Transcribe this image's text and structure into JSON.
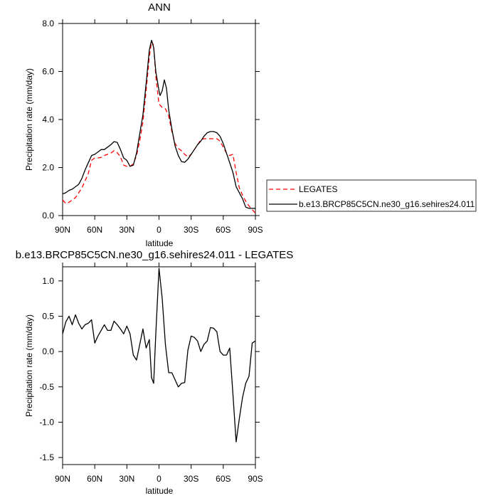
{
  "chart_data": [
    {
      "type": "line",
      "title": "ANN",
      "xlabel": "latitude",
      "ylabel": "Precipitation rate (mm/day)",
      "xlim": [
        90,
        -90
      ],
      "ylim": [
        0,
        8
      ],
      "xticks": [
        90,
        60,
        30,
        0,
        -30,
        -60,
        -90
      ],
      "xtick_labels": [
        "90N",
        "60N",
        "30N",
        "0",
        "30S",
        "60S",
        "90S"
      ],
      "yticks": [
        0,
        2,
        4,
        6,
        8
      ],
      "ytick_labels": [
        "0.0",
        "2.0",
        "4.0",
        "6.0",
        "8.0"
      ],
      "grid": false,
      "legend_position": "right",
      "series": [
        {
          "name": "LEGATES",
          "color": "#ff0000",
          "dash": "dashed",
          "points": [
            [
              90,
              0.65
            ],
            [
              87,
              0.5
            ],
            [
              84,
              0.55
            ],
            [
              81,
              0.65
            ],
            [
              78,
              0.75
            ],
            [
              75,
              0.95
            ],
            [
              72,
              1.15
            ],
            [
              69,
              1.45
            ],
            [
              66,
              1.75
            ],
            [
              63,
              2.3
            ],
            [
              60,
              2.4
            ],
            [
              57,
              2.4
            ],
            [
              54,
              2.42
            ],
            [
              51,
              2.5
            ],
            [
              48,
              2.55
            ],
            [
              45,
              2.6
            ],
            [
              42,
              2.7
            ],
            [
              39,
              2.62
            ],
            [
              36,
              2.45
            ],
            [
              33,
              2.1
            ],
            [
              30,
              2.05
            ],
            [
              27,
              2.05
            ],
            [
              24,
              2.15
            ],
            [
              21,
              2.5
            ],
            [
              18,
              3.1
            ],
            [
              15,
              3.9
            ],
            [
              12,
              5.2
            ],
            [
              9,
              6.6
            ],
            [
              7,
              7.25
            ],
            [
              5,
              7.1
            ],
            [
              3,
              5.8
            ],
            [
              0,
              4.65
            ],
            [
              -3,
              4.5
            ],
            [
              -6,
              4.45
            ],
            [
              -9,
              4.15
            ],
            [
              -12,
              3.5
            ],
            [
              -15,
              3.0
            ],
            [
              -18,
              2.8
            ],
            [
              -21,
              2.7
            ],
            [
              -24,
              2.55
            ],
            [
              -27,
              2.45
            ],
            [
              -30,
              2.55
            ],
            [
              -33,
              2.75
            ],
            [
              -36,
              2.95
            ],
            [
              -39,
              3.15
            ],
            [
              -42,
              3.2
            ],
            [
              -45,
              3.2
            ],
            [
              -48,
              3.2
            ],
            [
              -51,
              3.2
            ],
            [
              -54,
              3.2
            ],
            [
              -57,
              3.1
            ],
            [
              -60,
              2.85
            ],
            [
              -63,
              2.6
            ],
            [
              -66,
              2.5
            ],
            [
              -69,
              2.55
            ],
            [
              -72,
              1.8
            ],
            [
              -75,
              1.15
            ],
            [
              -78,
              0.85
            ],
            [
              -81,
              0.6
            ],
            [
              -84,
              0.4
            ],
            [
              -87,
              0.25
            ],
            [
              -90,
              0.1
            ]
          ]
        },
        {
          "name": "b.e13.BRCP85C5CN.ne30_g16.sehires24.011",
          "color": "#000000",
          "dash": "solid",
          "points": [
            [
              90,
              0.9
            ],
            [
              87,
              0.95
            ],
            [
              84,
              1.05
            ],
            [
              81,
              1.1
            ],
            [
              78,
              1.2
            ],
            [
              75,
              1.3
            ],
            [
              72,
              1.55
            ],
            [
              69,
              1.9
            ],
            [
              66,
              2.2
            ],
            [
              63,
              2.5
            ],
            [
              60,
              2.55
            ],
            [
              57,
              2.65
            ],
            [
              54,
              2.75
            ],
            [
              51,
              2.75
            ],
            [
              48,
              2.85
            ],
            [
              45,
              2.95
            ],
            [
              42,
              3.08
            ],
            [
              39,
              3.05
            ],
            [
              36,
              2.75
            ],
            [
              33,
              2.4
            ],
            [
              30,
              2.3
            ],
            [
              27,
              2.05
            ],
            [
              24,
              2.1
            ],
            [
              21,
              2.6
            ],
            [
              18,
              3.4
            ],
            [
              15,
              4.2
            ],
            [
              12,
              5.5
            ],
            [
              9,
              6.9
            ],
            [
              7,
              7.3
            ],
            [
              5,
              7.0
            ],
            [
              3,
              6.0
            ],
            [
              0,
              5.2
            ],
            [
              -1,
              5.0
            ],
            [
              -3,
              5.2
            ],
            [
              -5,
              5.65
            ],
            [
              -7,
              5.3
            ],
            [
              -9,
              4.4
            ],
            [
              -12,
              3.6
            ],
            [
              -15,
              2.9
            ],
            [
              -18,
              2.5
            ],
            [
              -21,
              2.25
            ],
            [
              -24,
              2.22
            ],
            [
              -27,
              2.35
            ],
            [
              -30,
              2.55
            ],
            [
              -33,
              2.75
            ],
            [
              -36,
              2.95
            ],
            [
              -39,
              3.1
            ],
            [
              -42,
              3.3
            ],
            [
              -45,
              3.45
            ],
            [
              -48,
              3.5
            ],
            [
              -51,
              3.5
            ],
            [
              -54,
              3.45
            ],
            [
              -57,
              3.3
            ],
            [
              -60,
              3.0
            ],
            [
              -63,
              2.6
            ],
            [
              -66,
              2.2
            ],
            [
              -69,
              1.8
            ],
            [
              -72,
              1.2
            ],
            [
              -75,
              0.95
            ],
            [
              -78,
              0.7
            ],
            [
              -81,
              0.35
            ],
            [
              -84,
              0.3
            ],
            [
              -87,
              0.3
            ],
            [
              -90,
              0.3
            ]
          ]
        }
      ]
    },
    {
      "type": "line",
      "title": "b.e13.BRCP85C5CN.ne30_g16.sehires24.011 - LEGATES",
      "xlabel": "latitude",
      "ylabel": "Precipitation rate (mm/day)",
      "xlim": [
        90,
        -90
      ],
      "ylim": [
        -1.6,
        1.2
      ],
      "xticks": [
        90,
        60,
        30,
        0,
        -30,
        -60,
        -90
      ],
      "xtick_labels": [
        "90N",
        "60N",
        "30N",
        "0",
        "30S",
        "60S",
        "90S"
      ],
      "yticks": [
        -1.5,
        -1.0,
        -0.5,
        0.0,
        0.5,
        1.0
      ],
      "ytick_labels": [
        "-1.5",
        "-1.0",
        "-0.5",
        "0.0",
        "0.5",
        "1.0"
      ],
      "grid": false,
      "series": [
        {
          "color": "#000000",
          "dash": "solid",
          "points": [
            [
              90,
              0.25
            ],
            [
              87,
              0.42
            ],
            [
              84,
              0.5
            ],
            [
              81,
              0.38
            ],
            [
              78,
              0.52
            ],
            [
              75,
              0.4
            ],
            [
              72,
              0.32
            ],
            [
              69,
              0.38
            ],
            [
              66,
              0.4
            ],
            [
              63,
              0.45
            ],
            [
              60,
              0.12
            ],
            [
              57,
              0.22
            ],
            [
              54,
              0.3
            ],
            [
              51,
              0.38
            ],
            [
              48,
              0.3
            ],
            [
              45,
              0.3
            ],
            [
              42,
              0.43
            ],
            [
              39,
              0.38
            ],
            [
              36,
              0.32
            ],
            [
              33,
              0.25
            ],
            [
              30,
              0.36
            ],
            [
              27,
              0.25
            ],
            [
              24,
              -0.05
            ],
            [
              21,
              -0.12
            ],
            [
              18,
              0.1
            ],
            [
              15,
              0.32
            ],
            [
              12,
              0.05
            ],
            [
              9,
              0.17
            ],
            [
              7,
              -0.37
            ],
            [
              5,
              -0.45
            ],
            [
              3,
              0.25
            ],
            [
              0,
              1.18
            ],
            [
              -3,
              0.75
            ],
            [
              -6,
              0.1
            ],
            [
              -9,
              -0.3
            ],
            [
              -12,
              -0.3
            ],
            [
              -15,
              -0.4
            ],
            [
              -18,
              -0.5
            ],
            [
              -21,
              -0.45
            ],
            [
              -24,
              -0.44
            ],
            [
              -27,
              0.02
            ],
            [
              -30,
              0.22
            ],
            [
              -33,
              0.2
            ],
            [
              -36,
              0.15
            ],
            [
              -39,
              0.0
            ],
            [
              -42,
              0.1
            ],
            [
              -45,
              0.15
            ],
            [
              -48,
              0.34
            ],
            [
              -51,
              0.33
            ],
            [
              -54,
              0.28
            ],
            [
              -57,
              0.0
            ],
            [
              -60,
              -0.05
            ],
            [
              -63,
              -0.05
            ],
            [
              -66,
              0.05
            ],
            [
              -69,
              -0.6
            ],
            [
              -72,
              -1.28
            ],
            [
              -75,
              -0.95
            ],
            [
              -78,
              -0.65
            ],
            [
              -81,
              -0.45
            ],
            [
              -84,
              -0.35
            ],
            [
              -87,
              0.12
            ],
            [
              -90,
              0.15
            ]
          ]
        }
      ]
    }
  ]
}
